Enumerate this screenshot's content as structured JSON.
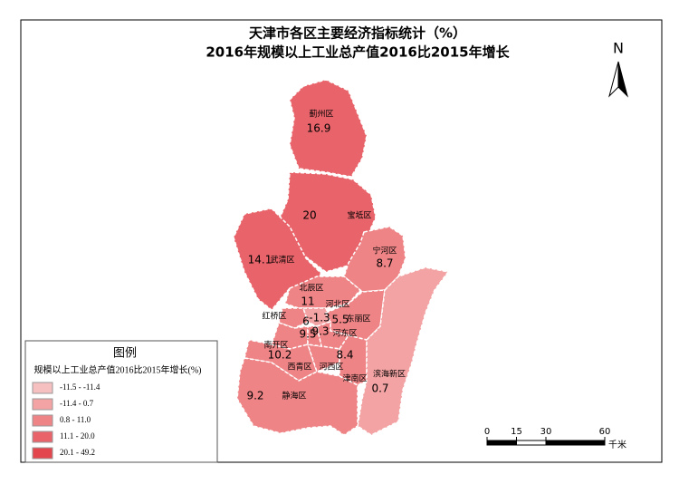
{
  "title": [
    "天津市各区主要经济指标统计（%）",
    "2016年规模以上工业总产值2016比2015年增长"
  ],
  "north": "N",
  "districts": [
    {
      "name": "蓟州区",
      "value": 16.9,
      "color": "#e8646a"
    },
    {
      "name": "宝坻区",
      "value": 20,
      "color": "#e8646a"
    },
    {
      "name": "武清区",
      "value": 14.1,
      "color": "#e8646a"
    },
    {
      "name": "宁河区",
      "value": 8.7,
      "color": "#ee8486"
    },
    {
      "name": "北辰区",
      "value": 11,
      "color": "#ee8486"
    },
    {
      "name": "红桥区",
      "value": 6,
      "color": "#ee8486"
    },
    {
      "name": "河北区",
      "value": -1.3,
      "color": "#f3a3a3"
    },
    {
      "name": "东丽区",
      "value": 5.5,
      "color": "#ee8486"
    },
    {
      "name": "南开区",
      "value": 9.5,
      "color": "#ee8486"
    },
    {
      "name": "河东区",
      "value": 9.3,
      "color": "#ee8486"
    },
    {
      "name": "西青区",
      "value": 10.2,
      "color": "#ee8486"
    },
    {
      "name": "河西区",
      "value": 8.4,
      "color": "#ee8486"
    },
    {
      "name": "津南区",
      "color": "#ee8486"
    },
    {
      "name": "滨海新区",
      "value": 0.7,
      "color": "#f3a3a3"
    },
    {
      "name": "静海区",
      "value": 9.2,
      "color": "#ee8486"
    }
  ],
  "legend": {
    "title": "图例",
    "subtitle": "规模以上工业总产值2016比2015年增长(%)",
    "items": [
      {
        "label": "-11.5 - -11.4",
        "color": "#f6c0c0"
      },
      {
        "label": "-11.4 - 0.7",
        "color": "#f3a3a3"
      },
      {
        "label": "0.8 - 11.0",
        "color": "#ee8486"
      },
      {
        "label": "11.1 - 20.0",
        "color": "#e8646a"
      },
      {
        "label": "20.1 - 49.2",
        "color": "#e3474d"
      }
    ]
  },
  "scale": {
    "ticks": [
      0,
      15,
      30,
      60
    ],
    "unit": "千米"
  }
}
